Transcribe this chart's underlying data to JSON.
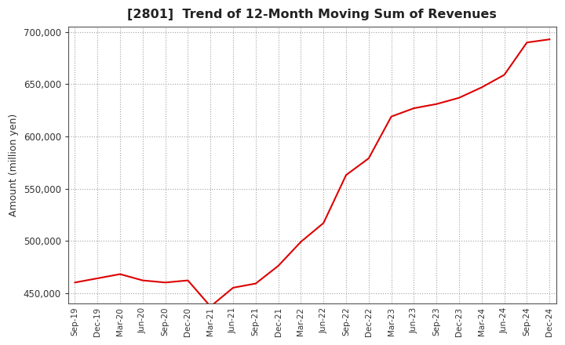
{
  "title": "[2801]  Trend of 12-Month Moving Sum of Revenues",
  "ylabel": "Amount (million yen)",
  "line_color": "#dd0000",
  "background_color": "#ffffff",
  "plot_bg_color": "#ffffff",
  "grid_color": "#999999",
  "ylim": [
    440000,
    705000
  ],
  "yticks": [
    450000,
    500000,
    550000,
    600000,
    650000,
    700000
  ],
  "x_labels": [
    "Sep-19",
    "Dec-19",
    "Mar-20",
    "Jun-20",
    "Sep-20",
    "Dec-20",
    "Mar-21",
    "Jun-21",
    "Sep-21",
    "Dec-21",
    "Mar-22",
    "Jun-22",
    "Sep-22",
    "Dec-22",
    "Mar-23",
    "Jun-23",
    "Sep-23",
    "Dec-23",
    "Mar-24",
    "Jun-24",
    "Sep-24",
    "Dec-24"
  ],
  "values": [
    460000,
    464000,
    468000,
    462000,
    460000,
    462000,
    437000,
    455000,
    459000,
    476000,
    499000,
    517000,
    563000,
    579000,
    619000,
    627000,
    631000,
    637000,
    647000,
    659000,
    690000,
    693000
  ]
}
